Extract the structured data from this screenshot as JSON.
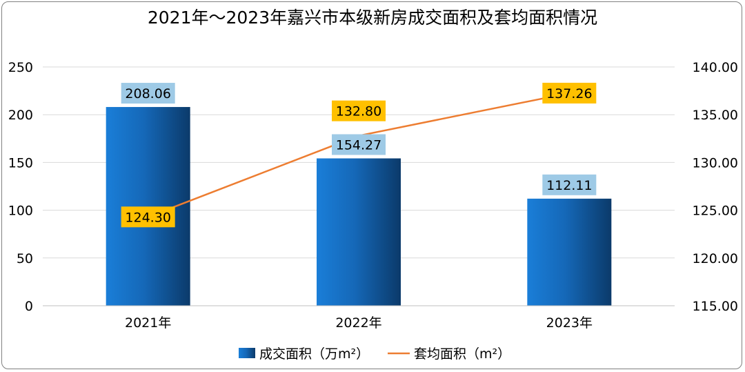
{
  "chart_data": {
    "type": "bar+line",
    "title": "2021年～2023年嘉兴市本级新房成交面积及套均面积情况",
    "categories": [
      "2021年",
      "2022年",
      "2023年"
    ],
    "series": [
      {
        "name": "成交面积（万m²）",
        "type": "bar",
        "axis": "left",
        "values": [
          208.06,
          154.27,
          112.11
        ],
        "labels": [
          "208.06",
          "154.27",
          "112.11"
        ]
      },
      {
        "name": "套均面积（m²）",
        "type": "line",
        "axis": "right",
        "values": [
          124.3,
          132.8,
          137.26
        ],
        "labels": [
          "124.30",
          "132.80",
          "137.26"
        ]
      }
    ],
    "y_left": {
      "min": 0,
      "max": 250,
      "ticks": [
        "0",
        "50",
        "100",
        "150",
        "200",
        "250"
      ]
    },
    "y_right": {
      "min": 115,
      "max": 140,
      "ticks": [
        "115.00",
        "120.00",
        "125.00",
        "130.00",
        "135.00",
        "140.00"
      ]
    },
    "grid": true,
    "legend": "bottom",
    "colors": {
      "bar_light": "#1a7ed8",
      "bar_dark": "#0b3a6a",
      "bar_label_bg": "#9ecae6",
      "line": "#ed7d31",
      "line_label_bg": "#ffc000",
      "grid": "#d9d9d9"
    }
  }
}
